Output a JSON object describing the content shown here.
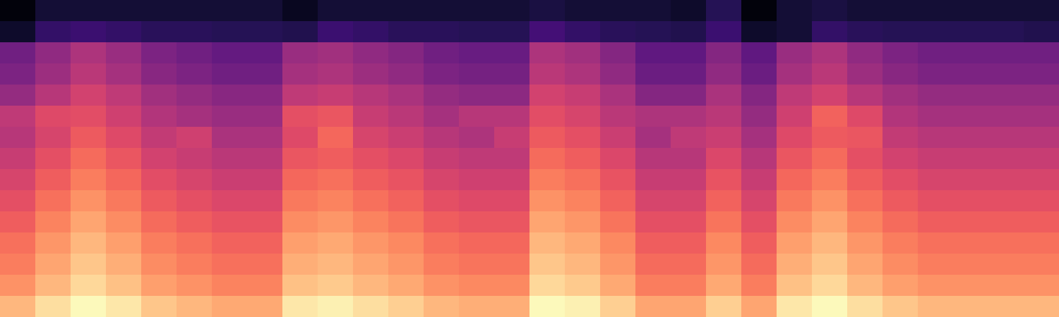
{
  "chart_data": {
    "type": "heatmap",
    "color": "magma",
    "tick_labels": false,
    "color_range": [
      0,
      1
    ],
    "cells": [
      [
        0.02,
        0.1,
        0.1,
        0.1,
        0.1,
        0.1,
        0.1,
        0.1,
        0.06,
        0.1,
        0.1,
        0.1,
        0.1,
        0.1,
        0.1,
        0.12,
        0.1,
        0.1,
        0.1,
        0.08,
        0.15,
        0.02,
        0.1,
        0.12,
        0.1,
        0.1,
        0.1,
        0.1,
        0.1,
        0.1
      ],
      [
        0.08,
        0.18,
        0.2,
        0.18,
        0.16,
        0.16,
        0.15,
        0.15,
        0.14,
        0.2,
        0.18,
        0.16,
        0.16,
        0.15,
        0.15,
        0.22,
        0.18,
        0.16,
        0.15,
        0.14,
        0.2,
        0.08,
        0.1,
        0.18,
        0.16,
        0.15,
        0.15,
        0.15,
        0.15,
        0.14
      ],
      [
        0.33,
        0.41,
        0.48,
        0.43,
        0.36,
        0.33,
        0.3,
        0.3,
        0.43,
        0.45,
        0.41,
        0.38,
        0.33,
        0.31,
        0.31,
        0.48,
        0.45,
        0.38,
        0.29,
        0.29,
        0.38,
        0.29,
        0.43,
        0.48,
        0.41,
        0.36,
        0.33,
        0.33,
        0.33,
        0.33
      ],
      [
        0.36,
        0.44,
        0.51,
        0.46,
        0.39,
        0.36,
        0.33,
        0.33,
        0.46,
        0.48,
        0.44,
        0.41,
        0.36,
        0.34,
        0.34,
        0.51,
        0.48,
        0.41,
        0.32,
        0.32,
        0.41,
        0.32,
        0.46,
        0.51,
        0.44,
        0.39,
        0.36,
        0.36,
        0.36,
        0.36
      ],
      [
        0.42,
        0.5,
        0.57,
        0.52,
        0.45,
        0.42,
        0.39,
        0.39,
        0.52,
        0.54,
        0.5,
        0.47,
        0.42,
        0.4,
        0.4,
        0.57,
        0.54,
        0.47,
        0.38,
        0.38,
        0.47,
        0.38,
        0.52,
        0.57,
        0.5,
        0.45,
        0.42,
        0.42,
        0.42,
        0.42
      ],
      [
        0.52,
        0.6,
        0.61,
        0.56,
        0.49,
        0.46,
        0.43,
        0.43,
        0.62,
        0.64,
        0.54,
        0.51,
        0.46,
        0.5,
        0.5,
        0.61,
        0.58,
        0.51,
        0.48,
        0.48,
        0.51,
        0.42,
        0.56,
        0.67,
        0.6,
        0.49,
        0.46,
        0.46,
        0.46,
        0.46
      ],
      [
        0.5,
        0.58,
        0.65,
        0.6,
        0.53,
        0.56,
        0.47,
        0.47,
        0.6,
        0.68,
        0.58,
        0.55,
        0.5,
        0.48,
        0.54,
        0.65,
        0.62,
        0.55,
        0.46,
        0.52,
        0.55,
        0.46,
        0.6,
        0.65,
        0.64,
        0.53,
        0.5,
        0.5,
        0.5,
        0.5
      ],
      [
        0.54,
        0.62,
        0.69,
        0.64,
        0.57,
        0.54,
        0.51,
        0.51,
        0.64,
        0.66,
        0.62,
        0.59,
        0.54,
        0.52,
        0.52,
        0.69,
        0.66,
        0.59,
        0.5,
        0.5,
        0.59,
        0.5,
        0.64,
        0.69,
        0.62,
        0.57,
        0.54,
        0.54,
        0.54,
        0.54
      ],
      [
        0.58,
        0.66,
        0.73,
        0.68,
        0.61,
        0.58,
        0.55,
        0.55,
        0.68,
        0.7,
        0.66,
        0.63,
        0.58,
        0.56,
        0.56,
        0.73,
        0.7,
        0.63,
        0.54,
        0.54,
        0.63,
        0.54,
        0.68,
        0.73,
        0.66,
        0.61,
        0.58,
        0.58,
        0.58,
        0.58
      ],
      [
        0.62,
        0.7,
        0.77,
        0.72,
        0.65,
        0.62,
        0.59,
        0.59,
        0.72,
        0.74,
        0.7,
        0.67,
        0.62,
        0.6,
        0.6,
        0.77,
        0.74,
        0.67,
        0.58,
        0.58,
        0.67,
        0.58,
        0.72,
        0.77,
        0.7,
        0.65,
        0.62,
        0.62,
        0.62,
        0.62
      ],
      [
        0.66,
        0.74,
        0.81,
        0.76,
        0.69,
        0.66,
        0.63,
        0.63,
        0.76,
        0.78,
        0.74,
        0.71,
        0.66,
        0.64,
        0.64,
        0.81,
        0.78,
        0.71,
        0.62,
        0.62,
        0.71,
        0.62,
        0.76,
        0.81,
        0.74,
        0.69,
        0.66,
        0.66,
        0.66,
        0.66
      ],
      [
        0.7,
        0.78,
        0.85,
        0.8,
        0.73,
        0.7,
        0.67,
        0.67,
        0.8,
        0.82,
        0.78,
        0.75,
        0.7,
        0.68,
        0.68,
        0.85,
        0.82,
        0.75,
        0.66,
        0.66,
        0.75,
        0.66,
        0.8,
        0.85,
        0.78,
        0.73,
        0.7,
        0.7,
        0.7,
        0.7
      ],
      [
        0.73,
        0.81,
        0.88,
        0.83,
        0.76,
        0.73,
        0.7,
        0.7,
        0.83,
        0.85,
        0.81,
        0.78,
        0.73,
        0.71,
        0.71,
        0.88,
        0.85,
        0.78,
        0.69,
        0.69,
        0.78,
        0.69,
        0.83,
        0.88,
        0.81,
        0.76,
        0.73,
        0.73,
        0.73,
        0.73
      ],
      [
        0.77,
        0.85,
        0.92,
        0.87,
        0.8,
        0.77,
        0.74,
        0.74,
        0.87,
        0.89,
        0.85,
        0.82,
        0.77,
        0.75,
        0.75,
        0.92,
        0.89,
        0.82,
        0.73,
        0.73,
        0.82,
        0.73,
        0.87,
        0.92,
        0.85,
        0.8,
        0.77,
        0.77,
        0.77,
        0.77
      ],
      [
        0.85,
        0.93,
        0.99,
        0.95,
        0.88,
        0.85,
        0.82,
        0.82,
        0.95,
        0.97,
        0.93,
        0.9,
        0.85,
        0.83,
        0.83,
        0.99,
        0.97,
        0.9,
        0.81,
        0.81,
        0.9,
        0.81,
        0.95,
        0.99,
        0.93,
        0.88,
        0.85,
        0.85,
        0.85,
        0.85
      ]
    ]
  }
}
